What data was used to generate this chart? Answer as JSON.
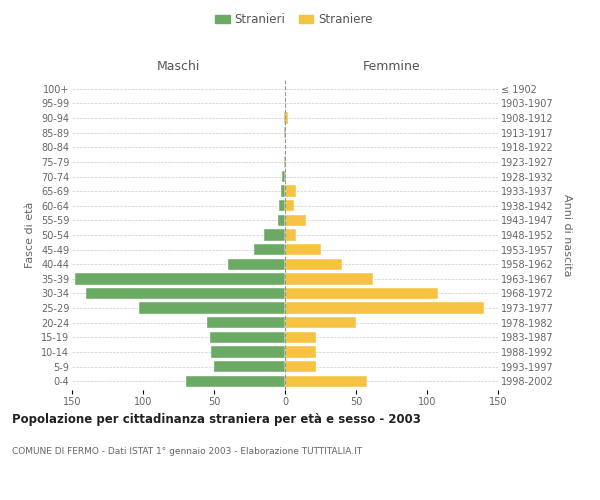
{
  "age_groups": [
    "0-4",
    "5-9",
    "10-14",
    "15-19",
    "20-24",
    "25-29",
    "30-34",
    "35-39",
    "40-44",
    "45-49",
    "50-54",
    "55-59",
    "60-64",
    "65-69",
    "70-74",
    "75-79",
    "80-84",
    "85-89",
    "90-94",
    "95-99",
    "100+"
  ],
  "birth_years": [
    "1998-2002",
    "1993-1997",
    "1988-1992",
    "1983-1987",
    "1978-1982",
    "1973-1977",
    "1968-1972",
    "1963-1967",
    "1958-1962",
    "1953-1957",
    "1948-1952",
    "1943-1947",
    "1938-1942",
    "1933-1937",
    "1928-1932",
    "1923-1927",
    "1918-1922",
    "1913-1917",
    "1908-1912",
    "1903-1907",
    "≤ 1902"
  ],
  "males": [
    70,
    50,
    52,
    53,
    55,
    103,
    140,
    148,
    40,
    22,
    15,
    5,
    4,
    3,
    2,
    1,
    0,
    1,
    1,
    0,
    0
  ],
  "females": [
    58,
    22,
    22,
    22,
    50,
    140,
    108,
    62,
    40,
    25,
    8,
    15,
    6,
    8,
    1,
    1,
    0,
    1,
    2,
    1,
    0
  ],
  "male_color": "#6aaa64",
  "female_color": "#f5c242",
  "title": "Popolazione per cittadinanza straniera per età e sesso - 2003",
  "subtitle": "COMUNE DI FERMO - Dati ISTAT 1° gennaio 2003 - Elaborazione TUTTITALIA.IT",
  "label_maschi": "Maschi",
  "label_femmine": "Femmine",
  "ylabel_left": "Fasce di età",
  "ylabel_right": "Anni di nascita",
  "legend_males": "Stranieri",
  "legend_females": "Straniere",
  "xlim": 150,
  "bg_color": "#ffffff",
  "grid_color": "#cccccc"
}
